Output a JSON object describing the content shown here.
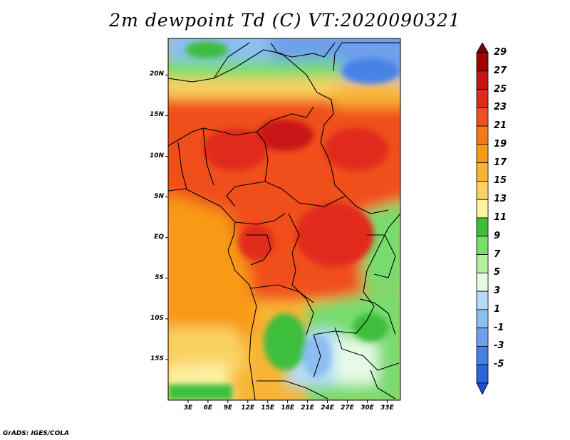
{
  "title": "2m dewpoint Td (C) VT:2020090321",
  "credit": "GrADS: IGES/COLA",
  "map": {
    "lat_labels": [
      {
        "text": "20N",
        "lat": 20
      },
      {
        "text": "15N",
        "lat": 15
      },
      {
        "text": "10N",
        "lat": 10
      },
      {
        "text": "5N",
        "lat": 5
      },
      {
        "text": "EQ",
        "lat": 0
      },
      {
        "text": "5S",
        "lat": -5
      },
      {
        "text": "10S",
        "lat": -10
      },
      {
        "text": "15S",
        "lat": -15
      }
    ],
    "lon_labels": [
      {
        "text": "3E",
        "lon": 3
      },
      {
        "text": "6E",
        "lon": 6
      },
      {
        "text": "9E",
        "lon": 9
      },
      {
        "text": "12E",
        "lon": 12
      },
      {
        "text": "15E",
        "lon": 15
      },
      {
        "text": "18E",
        "lon": 18
      },
      {
        "text": "21E",
        "lon": 21
      },
      {
        "text": "24E",
        "lon": 24
      },
      {
        "text": "27E",
        "lon": 27
      },
      {
        "text": "30E",
        "lon": 30
      },
      {
        "text": "33E",
        "lon": 33
      }
    ],
    "extent": {
      "lon_min": 0,
      "lon_max": 35,
      "lat_min": -20,
      "lat_max": 24.5
    }
  },
  "colorbar": {
    "levels": [
      {
        "label": "29",
        "color": "#a50000"
      },
      {
        "label": "27",
        "color": "#c81414"
      },
      {
        "label": "25",
        "color": "#e12a1c"
      },
      {
        "label": "23",
        "color": "#f0501e"
      },
      {
        "label": "21",
        "color": "#f57a14"
      },
      {
        "label": "19",
        "color": "#f89a14"
      },
      {
        "label": "17",
        "color": "#f8b434"
      },
      {
        "label": "15",
        "color": "#fad264"
      },
      {
        "label": "13",
        "color": "#fdf0a0"
      },
      {
        "label": "11",
        "color": "#3cbe3c"
      },
      {
        "label": "9",
        "color": "#78dc6e"
      },
      {
        "label": "7",
        "color": "#b4f0a0"
      },
      {
        "label": "5",
        "color": "#e6fae6"
      },
      {
        "label": "3",
        "color": "#b4dcfa"
      },
      {
        "label": "1",
        "color": "#8cbef0"
      },
      {
        "label": "-1",
        "color": "#6ea0eb"
      },
      {
        "label": "-3",
        "color": "#4682e6"
      },
      {
        "label": "-5",
        "color": "#2864dc"
      }
    ],
    "low_color": "#1e50c8",
    "high_color": "#7d0000"
  }
}
